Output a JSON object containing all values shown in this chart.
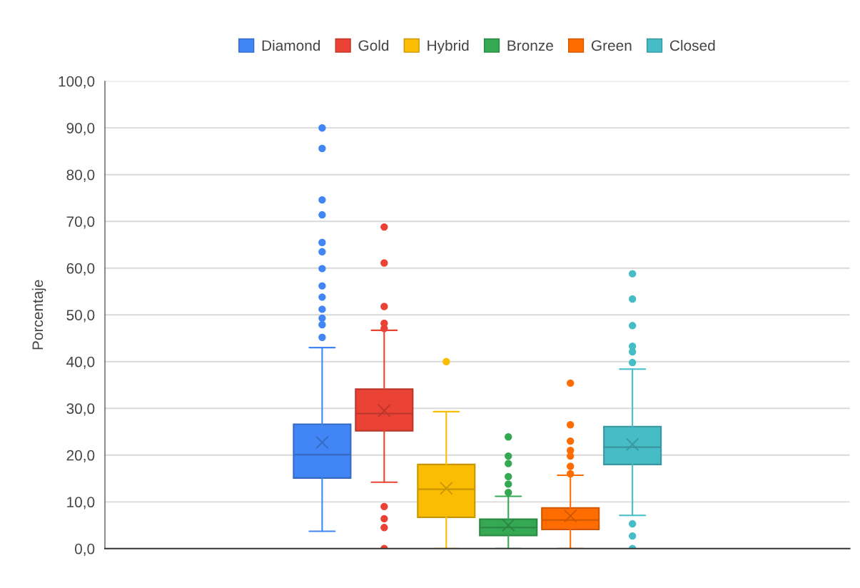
{
  "chart_data": {
    "type": "box",
    "ylabel": "Porcentaje",
    "categories": [
      null
    ],
    "ylim": [
      0,
      100
    ],
    "yticks": [
      {
        "value": 0,
        "label": "0,0"
      },
      {
        "value": 10,
        "label": "10,0"
      },
      {
        "value": 20,
        "label": "20,0"
      },
      {
        "value": 30,
        "label": "30,0"
      },
      {
        "value": 40,
        "label": "40,0"
      },
      {
        "value": 50,
        "label": "50,0"
      },
      {
        "value": 60,
        "label": "60,0"
      },
      {
        "value": 70,
        "label": "70,0"
      },
      {
        "value": 80,
        "label": "80,0"
      },
      {
        "value": 90,
        "label": "90,0"
      },
      {
        "value": 100,
        "label": "100,0"
      }
    ],
    "grid": "y",
    "legend": "top",
    "tick_labels": "y",
    "series": [
      {
        "name": "Diamond",
        "color": "#4285f4",
        "boxes": [
          {
            "low": 3.7,
            "q1": 15.1,
            "median": 20.1,
            "q3": 26.6,
            "high": 43.0,
            "mean": 22.7,
            "outliers": [
              90.0,
              85.6,
              74.6,
              71.4,
              65.5,
              63.5,
              59.9,
              56.2,
              53.8,
              51.2,
              49.3,
              47.9,
              45.2
            ]
          }
        ]
      },
      {
        "name": "Gold",
        "color": "#ea4335",
        "boxes": [
          {
            "low": 14.2,
            "q1": 25.2,
            "median": 28.9,
            "q3": 34.1,
            "high": 46.7,
            "mean": 29.5,
            "outliers": [
              68.8,
              61.1,
              51.8,
              48.2,
              47.1,
              9.0,
              6.4,
              4.5,
              0
            ]
          }
        ]
      },
      {
        "name": "Hybrid",
        "color": "#fbbc04",
        "boxes": [
          {
            "low": 0,
            "q1": 6.7,
            "median": 12.7,
            "q3": 18.0,
            "high": 29.3,
            "mean": 12.9,
            "outliers": [
              40.0
            ]
          }
        ]
      },
      {
        "name": "Bronze",
        "color": "#34a853",
        "boxes": [
          {
            "low": 0,
            "q1": 2.8,
            "median": 4.5,
            "q3": 6.3,
            "high": 11.2,
            "mean": 5.0,
            "outliers": [
              23.9,
              19.8,
              18.2,
              15.4,
              13.8,
              12.0
            ]
          }
        ]
      },
      {
        "name": "Green",
        "color": "#ff6d01",
        "boxes": [
          {
            "low": 0,
            "q1": 4.1,
            "median": 6.1,
            "q3": 8.7,
            "high": 15.7,
            "mean": 7.0,
            "outliers": [
              35.4,
              26.5,
              23.0,
              21.0,
              19.8,
              17.6,
              16.0
            ]
          }
        ]
      },
      {
        "name": "Closed",
        "color": "#46bdc6",
        "boxes": [
          {
            "low": 7.1,
            "q1": 18.0,
            "median": 21.7,
            "q3": 26.1,
            "high": 38.4,
            "mean": 22.3,
            "outliers": [
              58.8,
              53.4,
              47.7,
              43.3,
              42.1,
              39.8,
              5.3,
              2.7,
              0
            ]
          }
        ]
      }
    ]
  }
}
